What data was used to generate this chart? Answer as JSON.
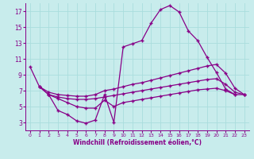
{
  "xlabel": "Windchill (Refroidissement éolien,°C)",
  "bg_color": "#c8ecec",
  "line_color": "#880088",
  "grid_color": "#aadddd",
  "xlim": [
    -0.5,
    23.5
  ],
  "ylim": [
    2,
    18
  ],
  "yticks": [
    3,
    5,
    7,
    9,
    11,
    13,
    15,
    17
  ],
  "xticks": [
    0,
    1,
    2,
    3,
    4,
    5,
    6,
    7,
    8,
    9,
    10,
    11,
    12,
    13,
    14,
    15,
    16,
    17,
    18,
    19,
    20,
    21,
    22,
    23
  ],
  "line1_x": [
    0,
    1,
    2,
    3,
    4,
    5,
    6,
    7,
    8,
    9,
    10,
    11,
    12,
    13,
    14,
    15,
    16,
    17,
    18,
    19,
    20,
    21,
    22,
    23
  ],
  "line1_y": [
    10.0,
    7.5,
    6.5,
    4.5,
    4.0,
    3.2,
    2.9,
    3.3,
    6.5,
    3.0,
    12.5,
    12.9,
    13.3,
    15.5,
    17.2,
    17.7,
    16.9,
    14.5,
    13.3,
    11.2,
    9.3,
    7.2,
    6.5,
    null
  ],
  "line2_x": [
    1,
    2,
    3,
    4,
    5,
    6,
    7,
    8,
    9,
    10,
    11,
    12,
    13,
    14,
    15,
    16,
    17,
    18,
    19,
    20,
    21,
    22,
    23
  ],
  "line2_y": [
    7.5,
    6.8,
    6.5,
    6.4,
    6.3,
    6.3,
    6.5,
    7.0,
    7.2,
    7.5,
    7.8,
    8.0,
    8.3,
    8.6,
    8.9,
    9.2,
    9.5,
    9.8,
    10.1,
    10.3,
    9.2,
    7.3,
    6.5
  ],
  "line3_x": [
    1,
    2,
    3,
    4,
    5,
    6,
    7,
    8,
    9,
    10,
    11,
    12,
    13,
    14,
    15,
    16,
    17,
    18,
    19,
    20,
    21,
    22,
    23
  ],
  "line3_y": [
    7.5,
    6.5,
    6.2,
    6.0,
    5.9,
    5.9,
    6.0,
    6.2,
    6.4,
    6.6,
    6.8,
    7.0,
    7.2,
    7.4,
    7.6,
    7.8,
    8.0,
    8.2,
    8.4,
    8.5,
    7.8,
    6.8,
    6.5
  ],
  "line4_x": [
    2,
    3,
    4,
    5,
    6,
    7,
    8,
    9,
    10,
    11,
    12,
    13,
    14,
    15,
    16,
    17,
    18,
    19,
    20,
    21,
    22,
    23
  ],
  "line4_y": [
    6.5,
    6.0,
    5.5,
    5.0,
    4.8,
    4.8,
    5.8,
    5.0,
    5.5,
    5.7,
    5.9,
    6.1,
    6.3,
    6.5,
    6.7,
    6.9,
    7.1,
    7.2,
    7.3,
    7.0,
    6.5,
    6.5
  ]
}
